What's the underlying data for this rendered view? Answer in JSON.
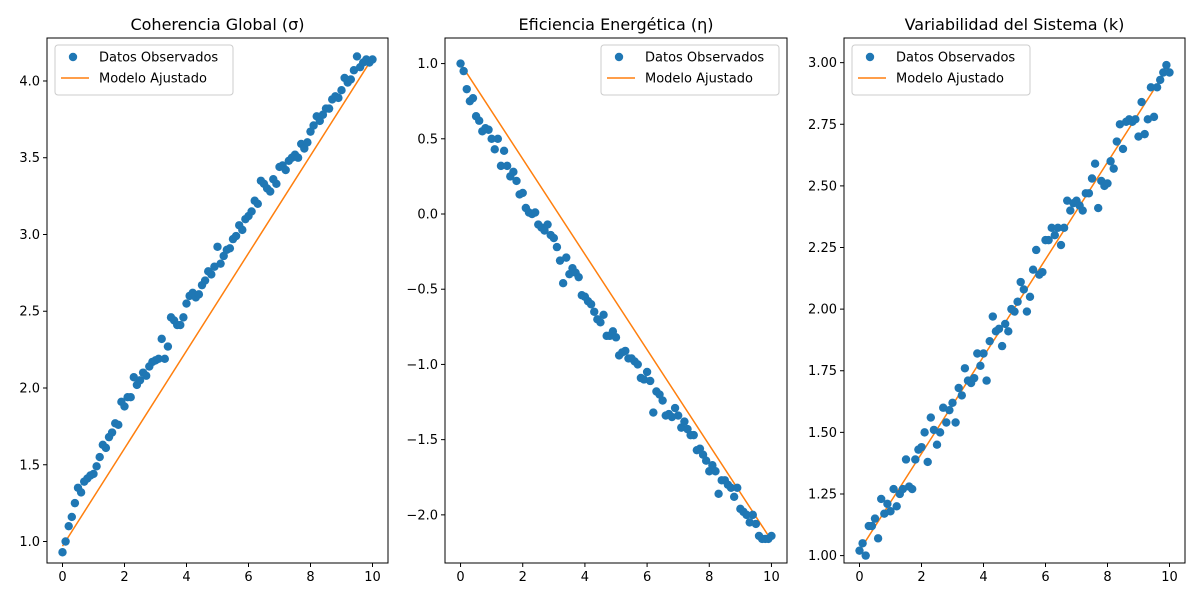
{
  "figure": {
    "background": "#ffffff",
    "colors": {
      "observed": "#1f77b4",
      "fitted": "#ff7f0e"
    }
  },
  "chart_data": [
    {
      "type": "scatter",
      "title": "Coherencia Global (σ)",
      "xlabel": "",
      "ylabel": "",
      "xlim": [
        -0.5,
        10.5
      ],
      "ylim": [
        0.86,
        4.28
      ],
      "xticks": [
        0,
        2,
        4,
        6,
        8,
        10
      ],
      "xtick_labels": [
        "0",
        "2",
        "4",
        "6",
        "8",
        "10"
      ],
      "yticks": [
        1.0,
        1.5,
        2.0,
        2.5,
        3.0,
        3.5,
        4.0
      ],
      "ytick_labels": [
        "1.0",
        "1.5",
        "2.0",
        "2.5",
        "3.0",
        "3.5",
        "4.0"
      ],
      "grid": false,
      "legend": {
        "position": "top-left",
        "entries": [
          "Datos Observados",
          "Modelo Ajustado"
        ]
      },
      "series": [
        {
          "name": "Datos Observados",
          "kind": "scatter",
          "color": "#1f77b4",
          "x": [
            0,
            0.1,
            0.2,
            0.3,
            0.4,
            0.5,
            0.6,
            0.7,
            0.8,
            0.9,
            1.0,
            1.1,
            1.2,
            1.3,
            1.4,
            1.5,
            1.6,
            1.7,
            1.8,
            1.9,
            2.0,
            2.1,
            2.2,
            2.3,
            2.4,
            2.5,
            2.6,
            2.7,
            2.8,
            2.9,
            3.0,
            3.1,
            3.2,
            3.3,
            3.4,
            3.5,
            3.6,
            3.7,
            3.8,
            3.9,
            4.0,
            4.1,
            4.2,
            4.3,
            4.4,
            4.5,
            4.6,
            4.7,
            4.8,
            4.9,
            5.0,
            5.1,
            5.2,
            5.3,
            5.4,
            5.5,
            5.6,
            5.7,
            5.8,
            5.9,
            6.0,
            6.1,
            6.2,
            6.3,
            6.4,
            6.5,
            6.6,
            6.7,
            6.8,
            6.9,
            7.0,
            7.1,
            7.2,
            7.3,
            7.4,
            7.5,
            7.6,
            7.7,
            7.8,
            7.9,
            8.0,
            8.1,
            8.2,
            8.3,
            8.4,
            8.5,
            8.6,
            8.7,
            8.8,
            8.9,
            9.0,
            9.1,
            9.2,
            9.3,
            9.4,
            9.5,
            9.6,
            9.7,
            9.8,
            9.9,
            10.0
          ],
          "y": [
            0.93,
            1.0,
            1.1,
            1.16,
            1.25,
            1.35,
            1.32,
            1.39,
            1.41,
            1.43,
            1.44,
            1.49,
            1.55,
            1.63,
            1.61,
            1.68,
            1.71,
            1.77,
            1.76,
            1.91,
            1.88,
            1.94,
            1.94,
            2.07,
            2.02,
            2.05,
            2.1,
            2.08,
            2.14,
            2.17,
            2.18,
            2.19,
            2.32,
            2.19,
            2.27,
            2.46,
            2.44,
            2.41,
            2.41,
            2.46,
            2.55,
            2.6,
            2.62,
            2.59,
            2.61,
            2.67,
            2.7,
            2.76,
            2.74,
            2.79,
            2.92,
            2.81,
            2.86,
            2.9,
            2.91,
            2.97,
            2.99,
            3.06,
            3.03,
            3.1,
            3.12,
            3.15,
            3.22,
            3.2,
            3.35,
            3.33,
            3.3,
            3.28,
            3.36,
            3.33,
            3.44,
            3.45,
            3.42,
            3.48,
            3.5,
            3.52,
            3.5,
            3.59,
            3.56,
            3.6,
            3.67,
            3.71,
            3.77,
            3.74,
            3.78,
            3.82,
            3.82,
            3.88,
            3.9,
            3.89,
            3.94,
            4.02,
            3.99,
            4.01,
            4.07,
            4.16,
            4.09,
            4.12,
            4.14,
            4.12,
            4.14
          ]
        },
        {
          "name": "Modelo Ajustado",
          "kind": "line",
          "color": "#ff7f0e",
          "x": [
            0,
            10
          ],
          "y": [
            0.97,
            4.15
          ]
        }
      ]
    },
    {
      "type": "scatter",
      "title": "Eficiencia Energética (η)",
      "xlabel": "",
      "ylabel": "",
      "xlim": [
        -0.5,
        10.5
      ],
      "ylim": [
        -2.32,
        1.17
      ],
      "xticks": [
        0,
        2,
        4,
        6,
        8,
        10
      ],
      "xtick_labels": [
        "0",
        "2",
        "4",
        "6",
        "8",
        "10"
      ],
      "yticks": [
        1.0,
        0.5,
        0.0,
        -0.5,
        -1.0,
        -1.5,
        -2.0
      ],
      "ytick_labels": [
        "1.0",
        "0.5",
        "0.0",
        "−0.5",
        "−1.0",
        "−1.5",
        "−2.0"
      ],
      "grid": false,
      "legend": {
        "position": "top-right",
        "entries": [
          "Datos Observados",
          "Modelo Ajustado"
        ]
      },
      "series": [
        {
          "name": "Datos Observados",
          "kind": "scatter",
          "color": "#1f77b4",
          "x": [
            0,
            0.1,
            0.2,
            0.3,
            0.4,
            0.5,
            0.6,
            0.7,
            0.8,
            0.9,
            1.0,
            1.1,
            1.2,
            1.3,
            1.4,
            1.5,
            1.6,
            1.7,
            1.8,
            1.9,
            2.0,
            2.1,
            2.2,
            2.3,
            2.4,
            2.5,
            2.6,
            2.7,
            2.8,
            2.9,
            3.0,
            3.1,
            3.2,
            3.3,
            3.4,
            3.5,
            3.6,
            3.7,
            3.8,
            3.9,
            4.0,
            4.1,
            4.2,
            4.3,
            4.4,
            4.5,
            4.6,
            4.7,
            4.8,
            4.9,
            5.0,
            5.1,
            5.2,
            5.3,
            5.4,
            5.5,
            5.6,
            5.7,
            5.8,
            5.9,
            6.0,
            6.1,
            6.2,
            6.3,
            6.4,
            6.5,
            6.6,
            6.7,
            6.8,
            6.9,
            7.0,
            7.1,
            7.2,
            7.3,
            7.4,
            7.5,
            7.6,
            7.7,
            7.8,
            7.9,
            8.0,
            8.1,
            8.2,
            8.3,
            8.4,
            8.5,
            8.6,
            8.7,
            8.8,
            8.9,
            9.0,
            9.1,
            9.2,
            9.3,
            9.4,
            9.5,
            9.6,
            9.7,
            9.8,
            9.9,
            10.0
          ],
          "y": [
            1.0,
            0.95,
            0.83,
            0.75,
            0.77,
            0.65,
            0.62,
            0.55,
            0.57,
            0.56,
            0.5,
            0.43,
            0.5,
            0.32,
            0.42,
            0.32,
            0.25,
            0.28,
            0.22,
            0.13,
            0.14,
            0.04,
            0.01,
            0.0,
            0.01,
            -0.07,
            -0.09,
            -0.11,
            -0.07,
            -0.14,
            -0.16,
            -0.22,
            -0.31,
            -0.46,
            -0.29,
            -0.4,
            -0.36,
            -0.39,
            -0.42,
            -0.54,
            -0.55,
            -0.58,
            -0.6,
            -0.65,
            -0.7,
            -0.72,
            -0.67,
            -0.81,
            -0.81,
            -0.78,
            -0.82,
            -0.94,
            -0.92,
            -0.91,
            -0.96,
            -0.96,
            -0.98,
            -1.0,
            -1.09,
            -1.1,
            -1.05,
            -1.11,
            -1.32,
            -1.18,
            -1.2,
            -1.24,
            -1.34,
            -1.33,
            -1.35,
            -1.29,
            -1.34,
            -1.42,
            -1.38,
            -1.43,
            -1.47,
            -1.47,
            -1.57,
            -1.56,
            -1.6,
            -1.64,
            -1.71,
            -1.67,
            -1.71,
            -1.86,
            -1.77,
            -1.77,
            -1.8,
            -1.82,
            -1.88,
            -1.82,
            -1.96,
            -1.98,
            -2.0,
            -2.05,
            -2.0,
            -2.06,
            -2.14,
            -2.16,
            -2.16,
            -2.16,
            -2.14
          ]
        },
        {
          "name": "Modelo Ajustado",
          "kind": "line",
          "color": "#ff7f0e",
          "x": [
            0,
            10
          ],
          "y": [
            1.0,
            -2.17
          ]
        }
      ]
    },
    {
      "type": "scatter",
      "title": "Variabilidad del Sistema (k)",
      "xlabel": "",
      "ylabel": "",
      "xlim": [
        -0.5,
        10.5
      ],
      "ylim": [
        0.97,
        3.1
      ],
      "xticks": [
        0,
        2,
        4,
        6,
        8,
        10
      ],
      "xtick_labels": [
        "0",
        "2",
        "4",
        "6",
        "8",
        "10"
      ],
      "yticks": [
        1.0,
        1.25,
        1.5,
        1.75,
        2.0,
        2.25,
        2.5,
        2.75,
        3.0
      ],
      "ytick_labels": [
        "1.00",
        "1.25",
        "1.50",
        "1.75",
        "2.00",
        "2.25",
        "2.50",
        "2.75",
        "3.00"
      ],
      "grid": false,
      "legend": {
        "position": "top-left",
        "entries": [
          "Datos Observados",
          "Modelo Ajustado"
        ]
      },
      "series": [
        {
          "name": "Datos Observados",
          "kind": "scatter",
          "color": "#1f77b4",
          "x": [
            0,
            0.1,
            0.2,
            0.3,
            0.4,
            0.5,
            0.6,
            0.7,
            0.8,
            0.9,
            1.0,
            1.1,
            1.2,
            1.3,
            1.4,
            1.5,
            1.6,
            1.7,
            1.8,
            1.9,
            2.0,
            2.1,
            2.2,
            2.3,
            2.4,
            2.5,
            2.6,
            2.7,
            2.8,
            2.9,
            3.0,
            3.1,
            3.2,
            3.3,
            3.4,
            3.5,
            3.6,
            3.7,
            3.8,
            3.9,
            4.0,
            4.1,
            4.2,
            4.3,
            4.4,
            4.5,
            4.6,
            4.7,
            4.8,
            4.9,
            5.0,
            5.1,
            5.2,
            5.3,
            5.4,
            5.5,
            5.6,
            5.7,
            5.8,
            5.9,
            6.0,
            6.1,
            6.2,
            6.3,
            6.4,
            6.5,
            6.6,
            6.7,
            6.8,
            6.9,
            7.0,
            7.1,
            7.2,
            7.3,
            7.4,
            7.5,
            7.6,
            7.7,
            7.8,
            7.9,
            8.0,
            8.1,
            8.2,
            8.3,
            8.4,
            8.5,
            8.6,
            8.7,
            8.8,
            8.9,
            9.0,
            9.1,
            9.2,
            9.3,
            9.4,
            9.5,
            9.6,
            9.7,
            9.8,
            9.9,
            10.0
          ],
          "y": [
            1.02,
            1.05,
            1.0,
            1.12,
            1.12,
            1.15,
            1.07,
            1.23,
            1.17,
            1.21,
            1.18,
            1.27,
            1.2,
            1.25,
            1.27,
            1.39,
            1.28,
            1.27,
            1.39,
            1.43,
            1.44,
            1.5,
            1.38,
            1.56,
            1.51,
            1.45,
            1.5,
            1.6,
            1.54,
            1.59,
            1.62,
            1.54,
            1.68,
            1.65,
            1.76,
            1.71,
            1.7,
            1.72,
            1.82,
            1.77,
            1.82,
            1.71,
            1.87,
            1.97,
            1.91,
            1.92,
            1.85,
            1.94,
            1.91,
            2.0,
            1.99,
            2.03,
            2.11,
            2.08,
            1.99,
            2.05,
            2.16,
            2.24,
            2.14,
            2.15,
            2.28,
            2.28,
            2.33,
            2.3,
            2.33,
            2.26,
            2.33,
            2.44,
            2.4,
            2.43,
            2.44,
            2.42,
            2.4,
            2.47,
            2.47,
            2.53,
            2.59,
            2.41,
            2.52,
            2.5,
            2.51,
            2.6,
            2.57,
            2.68,
            2.75,
            2.65,
            2.76,
            2.77,
            2.76,
            2.77,
            2.7,
            2.84,
            2.71,
            2.77,
            2.9,
            2.78,
            2.9,
            2.93,
            2.96,
            2.99,
            2.96
          ]
        },
        {
          "name": "Modelo Ajustado",
          "kind": "line",
          "color": "#ff7f0e",
          "x": [
            0,
            10
          ],
          "y": [
            1.02,
            2.99
          ]
        }
      ]
    }
  ]
}
